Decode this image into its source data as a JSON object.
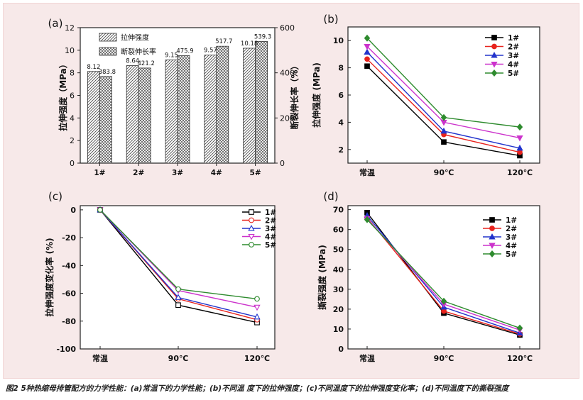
{
  "caption": "图2 5种热缩母排管配方的力学性能：(a)常温下的力学性能；(b)不同温 度下的拉伸强度；(c)不同温度下的拉伸强度变化率；(d)不同温度下的撕裂强度",
  "chart_data": [
    {
      "id": "a",
      "panel_label": "(a)",
      "type": "bar",
      "categories": [
        "1#",
        "2#",
        "3#",
        "4#",
        "5#"
      ],
      "series": [
        {
          "name": "拉伸强度",
          "axis": "left",
          "values": [
            8.12,
            8.64,
            9.15,
            9.57,
            10.18
          ],
          "labels": [
            "8.12",
            "8.64",
            "9.15",
            "9.57",
            "10.18"
          ]
        },
        {
          "name": "断裂伸长率",
          "axis": "right",
          "values": [
            383.8,
            421.2,
            475.9,
            517.7,
            539.3
          ],
          "labels": [
            "383.8",
            "421.2",
            "475.9",
            "517.7",
            "539.3"
          ]
        }
      ],
      "ylabel": "拉伸强度（MPa）",
      "ylabel_right": "断裂伸长率（%）",
      "ylim": [
        0,
        12
      ],
      "ylim_right": [
        0,
        600
      ],
      "yticks": [
        "0",
        "2",
        "4",
        "6",
        "8",
        "10",
        "12"
      ],
      "yticks_right": [
        "0",
        "200",
        "400",
        "600"
      ],
      "legend_position": "top-left"
    },
    {
      "id": "b",
      "panel_label": "(b)",
      "type": "line",
      "categories": [
        "常温",
        "90℃",
        "120℃"
      ],
      "series": [
        {
          "name": "1#",
          "color": "#000000",
          "marker": "square",
          "values": [
            8.12,
            2.55,
            1.55
          ]
        },
        {
          "name": "2#",
          "color": "#e8231d",
          "marker": "circle",
          "values": [
            8.64,
            3.1,
            1.8
          ]
        },
        {
          "name": "3#",
          "color": "#2233cc",
          "marker": "triangle-up",
          "values": [
            9.15,
            3.35,
            2.1
          ]
        },
        {
          "name": "4#",
          "color": "#cc33cc",
          "marker": "triangle-down",
          "values": [
            9.57,
            4.0,
            2.85
          ]
        },
        {
          "name": "5#",
          "color": "#2e8b2e",
          "marker": "diamond",
          "values": [
            10.18,
            4.35,
            3.65
          ]
        }
      ],
      "ylabel": "拉伸强度 (MPa)",
      "ylim": [
        1,
        11
      ],
      "yticks": [
        "2",
        "4",
        "6",
        "8",
        "10"
      ],
      "legend_position": "top-right"
    },
    {
      "id": "c",
      "panel_label": "(c)",
      "type": "line",
      "categories": [
        "常温",
        "90℃",
        "120℃"
      ],
      "series": [
        {
          "name": "1#",
          "color": "#000000",
          "marker": "square-open",
          "values": [
            0,
            -68.5,
            -81
          ]
        },
        {
          "name": "2#",
          "color": "#e8231d",
          "marker": "circle-open",
          "values": [
            0,
            -64,
            -79
          ]
        },
        {
          "name": "3#",
          "color": "#2233cc",
          "marker": "triangle-up-open",
          "values": [
            0,
            -63,
            -77
          ]
        },
        {
          "name": "4#",
          "color": "#cc33cc",
          "marker": "triangle-down-open",
          "values": [
            0,
            -58,
            -70
          ]
        },
        {
          "name": "5#",
          "color": "#2e8b2e",
          "marker": "circle-open",
          "values": [
            0,
            -57,
            -64
          ]
        }
      ],
      "ylabel": "拉伸强度变化率 (%)",
      "ylim": [
        -100,
        3
      ],
      "yticks": [
        "0",
        "-20",
        "-40",
        "-60",
        "-80",
        "-100"
      ],
      "legend_position": "top-right"
    },
    {
      "id": "d",
      "panel_label": "(d)",
      "type": "line",
      "categories": [
        "常温",
        "90℃",
        "120℃"
      ],
      "series": [
        {
          "name": "1#",
          "color": "#000000",
          "marker": "square",
          "values": [
            68.5,
            18,
            7
          ]
        },
        {
          "name": "2#",
          "color": "#e8231d",
          "marker": "circle",
          "values": [
            66,
            19,
            7.5
          ]
        },
        {
          "name": "3#",
          "color": "#2233cc",
          "marker": "triangle-up",
          "values": [
            67,
            21,
            8
          ]
        },
        {
          "name": "4#",
          "color": "#cc33cc",
          "marker": "triangle-down",
          "values": [
            65.5,
            22.5,
            9.5
          ]
        },
        {
          "name": "5#",
          "color": "#2e8b2e",
          "marker": "diamond",
          "values": [
            65,
            24,
            10.5
          ]
        }
      ],
      "ylabel": "撕裂强度 (MPa)",
      "ylim": [
        0,
        72
      ],
      "yticks": [
        "0",
        "10",
        "20",
        "30",
        "40",
        "50",
        "60",
        "70"
      ],
      "legend_position": "top-right"
    }
  ]
}
